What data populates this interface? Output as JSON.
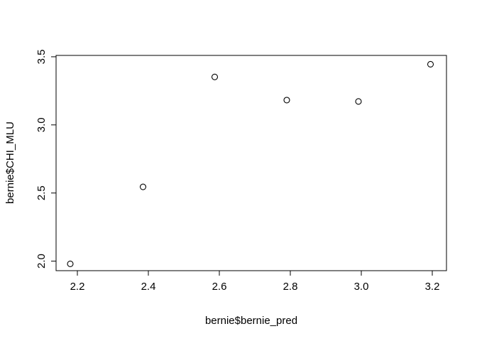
{
  "chart_data": {
    "type": "scatter",
    "title": "",
    "xlabel": "bernie$bernie_pred",
    "ylabel": "bernie$CHI_MLU",
    "xlim": [
      2.14,
      3.24
    ],
    "ylim": [
      1.93,
      3.51
    ],
    "x_ticks": [
      2.2,
      2.4,
      2.6,
      2.8,
      3.0,
      3.2
    ],
    "x_tick_labels": [
      "2.2",
      "2.4",
      "2.6",
      "2.8",
      "3.0",
      "3.2"
    ],
    "y_ticks": [
      2.0,
      2.5,
      3.0,
      3.5
    ],
    "y_tick_labels": [
      "2.0",
      "2.5",
      "3.0",
      "3.5"
    ],
    "grid": false,
    "marker": "open-circle",
    "points": [
      {
        "x": 2.18,
        "y": 1.98
      },
      {
        "x": 2.385,
        "y": 2.545
      },
      {
        "x": 2.587,
        "y": 3.352
      },
      {
        "x": 2.79,
        "y": 3.182
      },
      {
        "x": 2.992,
        "y": 3.172
      },
      {
        "x": 3.195,
        "y": 3.445
      }
    ]
  }
}
